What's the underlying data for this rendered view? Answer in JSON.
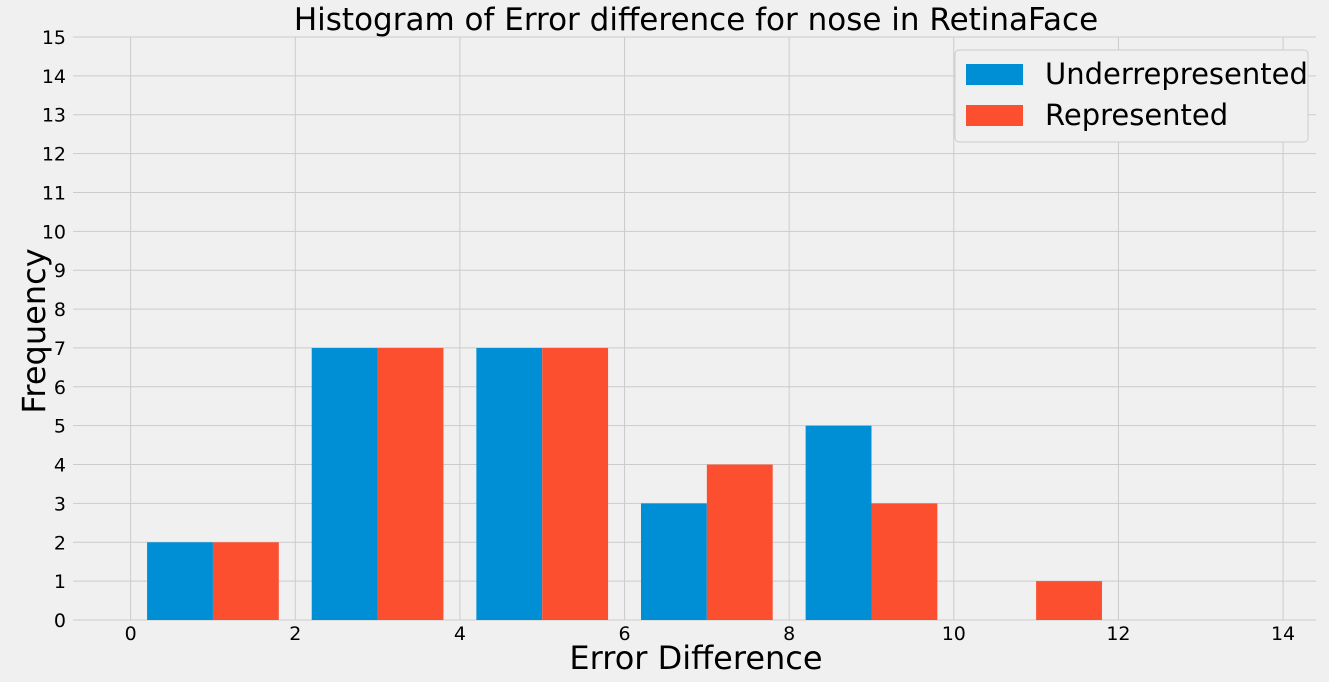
{
  "chart_data": {
    "type": "bar",
    "title": "Histogram of Error difference for nose in RetinaFace",
    "xlabel": "Error Difference",
    "ylabel": "Frequency",
    "xlim": [
      -0.7,
      14.4
    ],
    "ylim": [
      0,
      15
    ],
    "xticks": [
      0,
      2,
      4,
      6,
      8,
      10,
      12,
      14
    ],
    "yticks": [
      0,
      1,
      2,
      3,
      4,
      5,
      6,
      7,
      8,
      9,
      10,
      11,
      12,
      13,
      14,
      15
    ],
    "grid": true,
    "legend_position": "top-right",
    "bin_edges": [
      0.2,
      2.2,
      4.2,
      6.2,
      8.2,
      10.2,
      12.2
    ],
    "series": [
      {
        "name": "Underrepresented",
        "color": "#008fd5",
        "values": [
          2,
          7,
          7,
          3,
          5,
          0
        ]
      },
      {
        "name": "Represented",
        "color": "#fc4f30",
        "values": [
          2,
          7,
          7,
          4,
          3,
          1
        ]
      }
    ]
  }
}
